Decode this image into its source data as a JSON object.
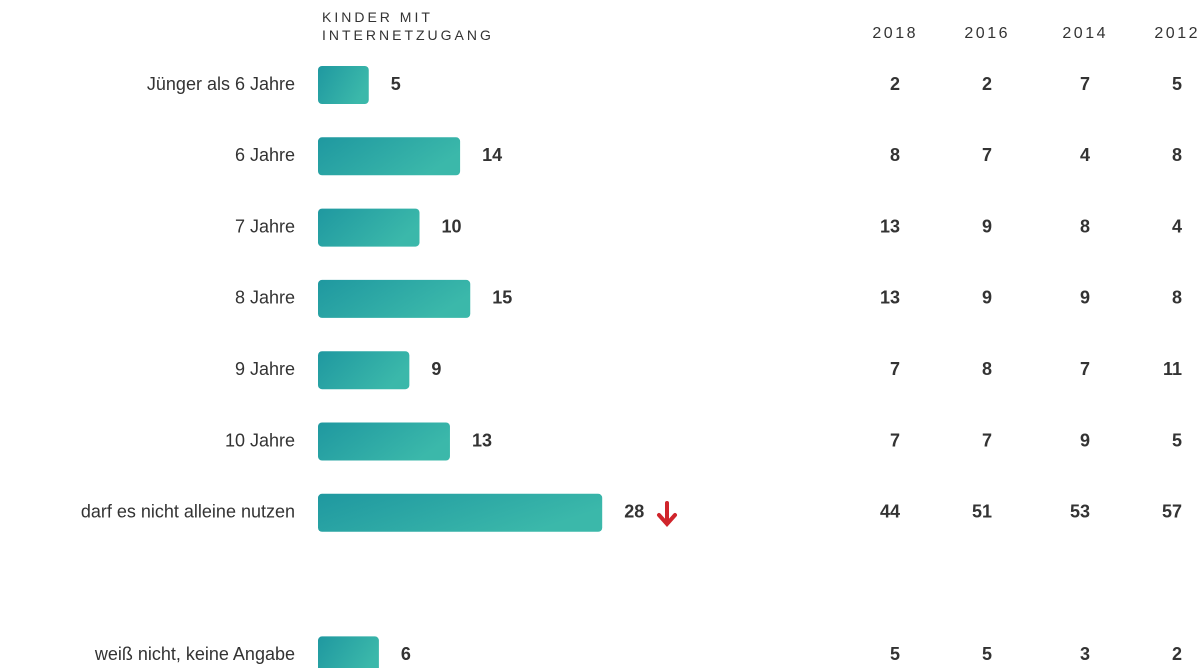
{
  "chart_data": {
    "type": "bar",
    "title": "KINDER MIT INTERNETZUGANG",
    "categories": [
      "Jünger als 6 Jahre",
      "6 Jahre",
      "7 Jahre",
      "8 Jahre",
      "9 Jahre",
      "10 Jahre",
      "darf es nicht alleine nutzen",
      "weiß nicht, keine Angabe"
    ],
    "values": [
      5,
      14,
      10,
      15,
      9,
      13,
      28,
      6
    ],
    "color": [
      "#1f98a0",
      "#3bb8aa"
    ],
    "series": [
      {
        "name": "2018",
        "values": [
          2,
          8,
          13,
          13,
          7,
          7,
          44,
          5
        ]
      },
      {
        "name": "2016",
        "values": [
          2,
          7,
          9,
          9,
          8,
          7,
          51,
          5
        ]
      },
      {
        "name": "2014",
        "values": [
          7,
          4,
          8,
          9,
          7,
          9,
          53,
          3
        ]
      },
      {
        "name": "2012",
        "values": [
          5,
          8,
          4,
          8,
          11,
          5,
          57,
          2
        ]
      }
    ]
  }
}
